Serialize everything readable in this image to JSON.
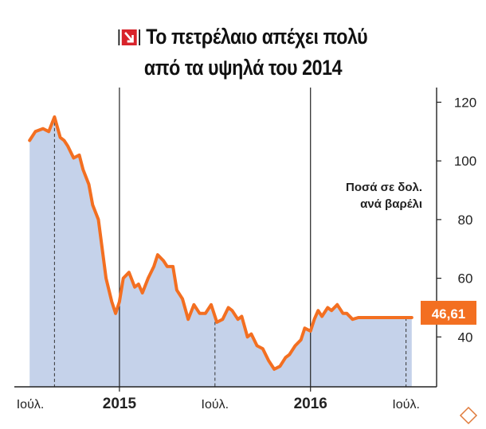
{
  "title_line1": "Το πετρέλαιο απέχει πολύ",
  "title_line2": "από τα υψηλά του 2014",
  "colors": {
    "line": "#f36f21",
    "area": "#c5d2ea",
    "badge_bg": "#d8232a",
    "grid": "#222222"
  },
  "chart_data": {
    "type": "area",
    "unit_label_line1": "Ποσά σε δολ.",
    "unit_label_line2": "ανά βαρέλι",
    "last_value_label": "46,61",
    "y_ticks": [
      40,
      60,
      80,
      100,
      120
    ],
    "ylim": [
      23,
      125
    ],
    "x_ticks": [
      {
        "label": "Ιούλ.",
        "x": 2014.5,
        "bold": false
      },
      {
        "label": "2015",
        "x": 2015.0,
        "bold": true
      },
      {
        "label": "Ιούλ.",
        "x": 2015.5,
        "bold": false
      },
      {
        "label": "2016",
        "x": 2016.0,
        "bold": true
      },
      {
        "label": "Ιούλ.",
        "x": 2016.5,
        "bold": false
      }
    ],
    "xlim": [
      2014.5,
      2016.66
    ],
    "grid": "vertical lines at year starts; dashed lines at mid-year",
    "series": [
      {
        "x": [
          2014.53,
          2014.56,
          2014.6,
          2014.63,
          2014.66,
          2014.69,
          2014.71,
          2014.73,
          2014.76,
          2014.79,
          2014.81,
          2014.84,
          2014.86,
          2014.89,
          2014.91,
          2014.93,
          2014.96,
          2014.98,
          2015.0,
          2015.02,
          2015.05,
          2015.08,
          2015.1,
          2015.12,
          2015.15,
          2015.18,
          2015.2,
          2015.23,
          2015.25,
          2015.28,
          2015.3,
          2015.33,
          2015.36,
          2015.39,
          2015.42,
          2015.45,
          2015.48,
          2015.51,
          2015.54,
          2015.57,
          2015.59,
          2015.62,
          2015.64,
          2015.67,
          2015.69,
          2015.72,
          2015.75,
          2015.78,
          2015.81,
          2015.84,
          2015.87,
          2015.89,
          2015.92,
          2015.95,
          2015.97,
          2016.0,
          2016.02,
          2016.04,
          2016.06,
          2016.09,
          2016.11,
          2016.14,
          2016.17,
          2016.19,
          2016.22,
          2016.25,
          2016.28,
          2016.31,
          2016.33,
          2016.36,
          2016.39,
          2016.42,
          2016.45,
          2016.48,
          2016.51,
          2016.53
        ],
        "values": [
          107,
          110,
          111,
          110,
          115,
          108,
          107,
          105,
          101,
          102,
          97,
          92,
          85,
          80,
          70,
          60,
          52,
          48,
          52,
          60,
          62,
          57,
          58,
          55,
          60,
          64,
          68,
          66,
          64,
          64,
          56,
          53,
          46,
          51,
          48,
          48,
          51,
          45,
          46,
          50,
          49,
          46,
          47,
          40,
          41,
          37,
          36,
          32,
          29,
          30,
          33,
          34,
          37,
          39,
          43,
          42,
          46,
          49,
          47,
          50,
          49,
          51,
          48,
          48,
          46,
          46.61,
          46.61,
          46.61,
          46.61,
          46.61,
          46.61,
          46.61,
          46.61,
          46.61,
          46.61,
          46.61
        ]
      }
    ]
  }
}
